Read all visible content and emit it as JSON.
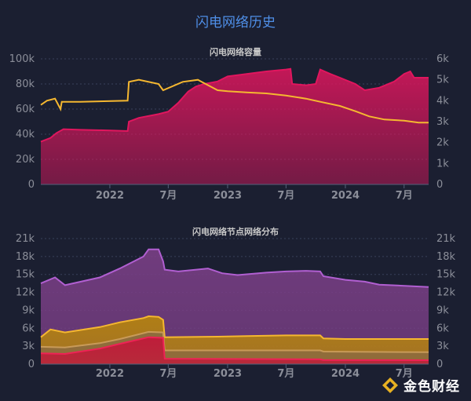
{
  "page": {
    "title": "闪电网络历史"
  },
  "watermark": {
    "text": "金色财经"
  },
  "chart_data": [
    {
      "type": "area",
      "title": "闪电网络容量",
      "x_ticks": [
        "2022",
        "7月",
        "2023",
        "7月",
        "2024",
        "7月"
      ],
      "x_domain": [
        "2021-06-01",
        "2024-09-15"
      ],
      "x_tick_dates": [
        "2022-01-01",
        "2022-07-01",
        "2023-01-01",
        "2023-07-01",
        "2024-01-01",
        "2024-07-01"
      ],
      "y_left": {
        "ylim": [
          0,
          100000
        ],
        "ticks": [
          "0",
          "20k",
          "40k",
          "60k",
          "80k",
          "100k"
        ]
      },
      "y_right": {
        "ylim": [
          0,
          6000
        ],
        "ticks": [
          "0",
          "1k",
          "2k",
          "3k",
          "4k",
          "5k",
          "6k"
        ]
      },
      "grid": true,
      "series": [
        {
          "axis": "left",
          "style": "area",
          "color": "#e0165e",
          "points": [
            [
              "2021-06-01",
              34000
            ],
            [
              "2021-07-01",
              37000
            ],
            [
              "2021-07-20",
              41000
            ],
            [
              "2021-08-10",
              44000
            ],
            [
              "2021-10-01",
              43500
            ],
            [
              "2022-01-01",
              43000
            ],
            [
              "2022-02-25",
              42500
            ],
            [
              "2022-03-01",
              50000
            ],
            [
              "2022-04-01",
              53000
            ],
            [
              "2022-06-01",
              56000
            ],
            [
              "2022-07-01",
              58000
            ],
            [
              "2022-08-01",
              65000
            ],
            [
              "2022-09-01",
              74000
            ],
            [
              "2022-09-25",
              78000
            ],
            [
              "2022-10-20",
              80000
            ],
            [
              "2022-12-01",
              82000
            ],
            [
              "2023-01-01",
              86000
            ],
            [
              "2023-03-01",
              88000
            ],
            [
              "2023-05-01",
              90000
            ],
            [
              "2023-07-01",
              91500
            ],
            [
              "2023-07-15",
              92000
            ],
            [
              "2023-07-20",
              80000
            ],
            [
              "2023-09-01",
              79000
            ],
            [
              "2023-10-01",
              80000
            ],
            [
              "2023-10-15",
              91500
            ],
            [
              "2023-11-15",
              88000
            ],
            [
              "2023-12-15",
              85000
            ],
            [
              "2024-02-01",
              80000
            ],
            [
              "2024-03-01",
              75000
            ],
            [
              "2024-04-15",
              77000
            ],
            [
              "2024-06-01",
              82000
            ],
            [
              "2024-07-01",
              88000
            ],
            [
              "2024-07-20",
              90000
            ],
            [
              "2024-08-01",
              85000
            ],
            [
              "2024-09-15",
              85000
            ]
          ]
        },
        {
          "axis": "right",
          "style": "line",
          "color": "#f5b730",
          "points": [
            [
              "2021-06-01",
              3800
            ],
            [
              "2021-06-20",
              4000
            ],
            [
              "2021-07-15",
              4100
            ],
            [
              "2021-08-01",
              3600
            ],
            [
              "2021-08-05",
              3950
            ],
            [
              "2021-10-01",
              3950
            ],
            [
              "2022-02-25",
              4000
            ],
            [
              "2022-03-01",
              4900
            ],
            [
              "2022-04-01",
              5000
            ],
            [
              "2022-06-01",
              4800
            ],
            [
              "2022-06-15",
              4500
            ],
            [
              "2022-08-15",
              4900
            ],
            [
              "2022-10-01",
              5000
            ],
            [
              "2022-12-01",
              4500
            ],
            [
              "2023-01-01",
              4450
            ],
            [
              "2023-03-01",
              4400
            ],
            [
              "2023-05-01",
              4350
            ],
            [
              "2023-07-01",
              4250
            ],
            [
              "2023-09-01",
              4100
            ],
            [
              "2023-10-15",
              3950
            ],
            [
              "2023-12-15",
              3750
            ],
            [
              "2024-02-01",
              3500
            ],
            [
              "2024-03-15",
              3250
            ],
            [
              "2024-05-01",
              3100
            ],
            [
              "2024-07-01",
              3050
            ],
            [
              "2024-08-15",
              2950
            ],
            [
              "2024-09-15",
              2950
            ]
          ]
        }
      ]
    },
    {
      "type": "area",
      "title": "闪电网络节点网络分布",
      "x_ticks": [
        "2022",
        "7月",
        "2023",
        "7月",
        "2024",
        "7月"
      ],
      "x_domain": [
        "2021-06-01",
        "2024-09-15"
      ],
      "x_tick_dates": [
        "2022-01-01",
        "2022-07-01",
        "2023-01-01",
        "2023-07-01",
        "2024-01-01",
        "2024-07-01"
      ],
      "y_left": {
        "ylim": [
          0,
          21000
        ],
        "ticks": [
          "0",
          "3k",
          "6k",
          "9k",
          "12k",
          "15k",
          "18k",
          "21k"
        ]
      },
      "y_right": {
        "ylim": [
          0,
          21000
        ],
        "ticks": [
          "0",
          "3k",
          "6k",
          "9k",
          "12k",
          "15k",
          "18k",
          "21k"
        ]
      },
      "grid": true,
      "series": [
        {
          "style": "area",
          "color": "#7a3f86",
          "line": "#b15fd1",
          "points": [
            [
              "2021-06-01",
              13500
            ],
            [
              "2021-07-15",
              14500
            ],
            [
              "2021-08-15",
              13200
            ],
            [
              "2021-12-01",
              14500
            ],
            [
              "2022-02-01",
              16000
            ],
            [
              "2022-04-15",
              18000
            ],
            [
              "2022-05-01",
              19200
            ],
            [
              "2022-06-01",
              19200
            ],
            [
              "2022-06-15",
              17200
            ],
            [
              "2022-06-20",
              15800
            ],
            [
              "2022-08-01",
              15500
            ],
            [
              "2022-11-01",
              16000
            ],
            [
              "2022-12-15",
              15200
            ],
            [
              "2023-02-01",
              14900
            ],
            [
              "2023-05-01",
              15300
            ],
            [
              "2023-07-01",
              15500
            ],
            [
              "2023-09-01",
              15600
            ],
            [
              "2023-10-15",
              15500
            ],
            [
              "2023-10-25",
              14700
            ],
            [
              "2024-01-01",
              14100
            ],
            [
              "2024-03-01",
              13800
            ],
            [
              "2024-04-15",
              13300
            ],
            [
              "2024-09-15",
              12900
            ]
          ]
        },
        {
          "style": "area",
          "color": "#b8860b",
          "line": "#f5b730",
          "points": [
            [
              "2021-06-01",
              4500
            ],
            [
              "2021-07-01",
              5800
            ],
            [
              "2021-08-15",
              5300
            ],
            [
              "2021-12-01",
              6200
            ],
            [
              "2022-02-01",
              7000
            ],
            [
              "2022-04-15",
              7700
            ],
            [
              "2022-05-01",
              8000
            ],
            [
              "2022-06-01",
              7900
            ],
            [
              "2022-06-15",
              7400
            ],
            [
              "2022-06-20",
              4500
            ],
            [
              "2022-12-01",
              4600
            ],
            [
              "2023-03-01",
              4700
            ],
            [
              "2023-07-01",
              4800
            ],
            [
              "2023-10-15",
              4800
            ],
            [
              "2023-10-25",
              4300
            ],
            [
              "2024-01-01",
              4200
            ],
            [
              "2024-09-15",
              4200
            ]
          ]
        },
        {
          "style": "area",
          "color": "#8a6a40",
          "line": "#c89a58",
          "points": [
            [
              "2021-06-01",
              2900
            ],
            [
              "2021-08-15",
              2800
            ],
            [
              "2021-12-01",
              3500
            ],
            [
              "2022-02-01",
              4200
            ],
            [
              "2022-05-01",
              5400
            ],
            [
              "2022-06-15",
              5300
            ],
            [
              "2022-06-20",
              2300
            ],
            [
              "2023-03-01",
              2300
            ],
            [
              "2023-10-15",
              2300
            ],
            [
              "2023-10-25",
              2100
            ],
            [
              "2024-09-15",
              2000
            ]
          ]
        },
        {
          "style": "area",
          "color": "#c4143a",
          "line": "#ee2255",
          "points": [
            [
              "2021-06-01",
              1800
            ],
            [
              "2021-08-15",
              1700
            ],
            [
              "2021-12-01",
              2600
            ],
            [
              "2022-02-01",
              3400
            ],
            [
              "2022-05-01",
              4500
            ],
            [
              "2022-06-15",
              4400
            ],
            [
              "2022-06-20",
              900
            ],
            [
              "2023-10-15",
              800
            ],
            [
              "2023-10-25",
              700
            ],
            [
              "2024-09-15",
              650
            ]
          ]
        }
      ]
    }
  ]
}
